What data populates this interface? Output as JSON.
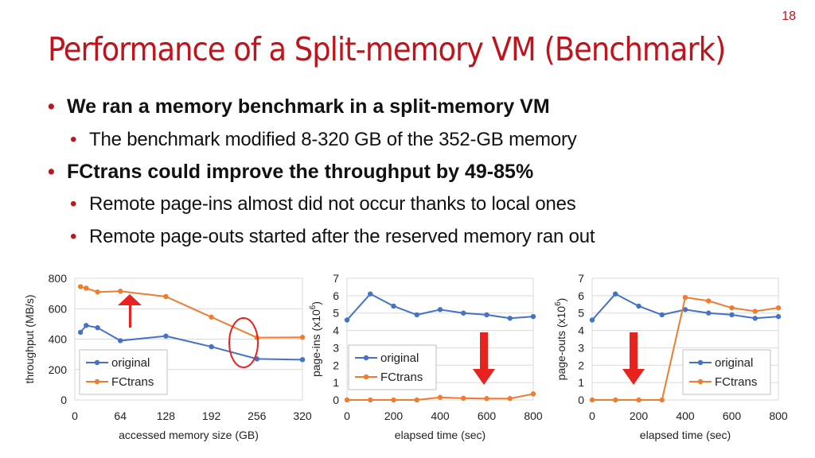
{
  "page_number": "18",
  "title": "Performance of a Split-memory VM (Benchmark)",
  "bullets": [
    {
      "level": 1,
      "text": "We ran a memory benchmark in a split-memory VM"
    },
    {
      "level": 2,
      "text": "The benchmark modified 8-320 GB of the 352-GB memory"
    },
    {
      "level": 1,
      "text": "FCtrans could improve the throughput by 49-85%"
    },
    {
      "level": 2,
      "text": "Remote page-ins almost did not occur thanks to local ones"
    },
    {
      "level": 2,
      "text": "Remote page-outs started after the reserved memory ran out"
    }
  ],
  "colors": {
    "accent": "#c0141c",
    "original": "#4472c4",
    "fctrans": "#ed7d31",
    "arrow": "#e8221c",
    "circle": "#e8221c"
  },
  "chart_data": [
    {
      "type": "line",
      "ylabel": "throughput (MB/s)",
      "xlabel": "accessed memory size (GB)",
      "xlim": [
        0,
        320
      ],
      "ylim": [
        0,
        800
      ],
      "xticks": [
        0,
        64,
        128,
        192,
        256,
        320
      ],
      "yticks": [
        0,
        200,
        400,
        600,
        800
      ],
      "grid": "horizontal",
      "legend": "lower-left",
      "series": [
        {
          "name": "original",
          "x": [
            8,
            16,
            32,
            64,
            128,
            192,
            256,
            320
          ],
          "y": [
            445,
            490,
            475,
            390,
            420,
            350,
            270,
            265
          ]
        },
        {
          "name": "FCtrans",
          "x": [
            8,
            16,
            32,
            64,
            128,
            192,
            256,
            320
          ],
          "y": [
            745,
            735,
            710,
            715,
            680,
            545,
            410,
            412
          ]
        }
      ],
      "annotations": [
        "red up arrow",
        "red ellipse around 256 GB"
      ]
    },
    {
      "type": "line",
      "ylabel_main": "page-ins (x10",
      "ylabel_sup": "6",
      "ylabel_end": ")",
      "xlabel": "elapsed time (sec)",
      "xlim": [
        0,
        800
      ],
      "ylim": [
        0,
        7
      ],
      "xticks": [
        0,
        200,
        400,
        600,
        800
      ],
      "yticks": [
        0,
        1,
        2,
        3,
        4,
        5,
        6,
        7
      ],
      "grid": "horizontal",
      "legend": "center-left",
      "series": [
        {
          "name": "original",
          "x": [
            0,
            100,
            200,
            300,
            400,
            500,
            600,
            700,
            800
          ],
          "y": [
            4.6,
            6.1,
            5.4,
            4.9,
            5.2,
            5.0,
            4.9,
            4.7,
            4.8
          ]
        },
        {
          "name": "FCtrans",
          "x": [
            0,
            100,
            200,
            300,
            400,
            500,
            600,
            700,
            800
          ],
          "y": [
            0,
            0,
            0,
            0,
            0.15,
            0.1,
            0.08,
            0.08,
            0.35
          ]
        }
      ],
      "annotations": [
        "red down arrow"
      ]
    },
    {
      "type": "line",
      "ylabel_main": "page-outs (x10",
      "ylabel_sup": "6",
      "ylabel_end": ")",
      "xlabel": "elapsed time (sec)",
      "xlim": [
        0,
        800
      ],
      "ylim": [
        0,
        7
      ],
      "xticks": [
        0,
        200,
        400,
        600,
        800
      ],
      "yticks": [
        0,
        1,
        2,
        3,
        4,
        5,
        6,
        7
      ],
      "grid": "horizontal",
      "legend": "lower-right",
      "series": [
        {
          "name": "original",
          "x": [
            0,
            100,
            200,
            300,
            400,
            500,
            600,
            700,
            800
          ],
          "y": [
            4.6,
            6.1,
            5.4,
            4.9,
            5.2,
            5.0,
            4.9,
            4.7,
            4.8
          ]
        },
        {
          "name": "FCtrans",
          "x": [
            0,
            100,
            200,
            300,
            400,
            500,
            600,
            700,
            800
          ],
          "y": [
            0,
            0,
            0,
            0,
            5.9,
            5.7,
            5.3,
            5.1,
            5.3
          ]
        }
      ],
      "annotations": [
        "red down arrow"
      ]
    }
  ]
}
